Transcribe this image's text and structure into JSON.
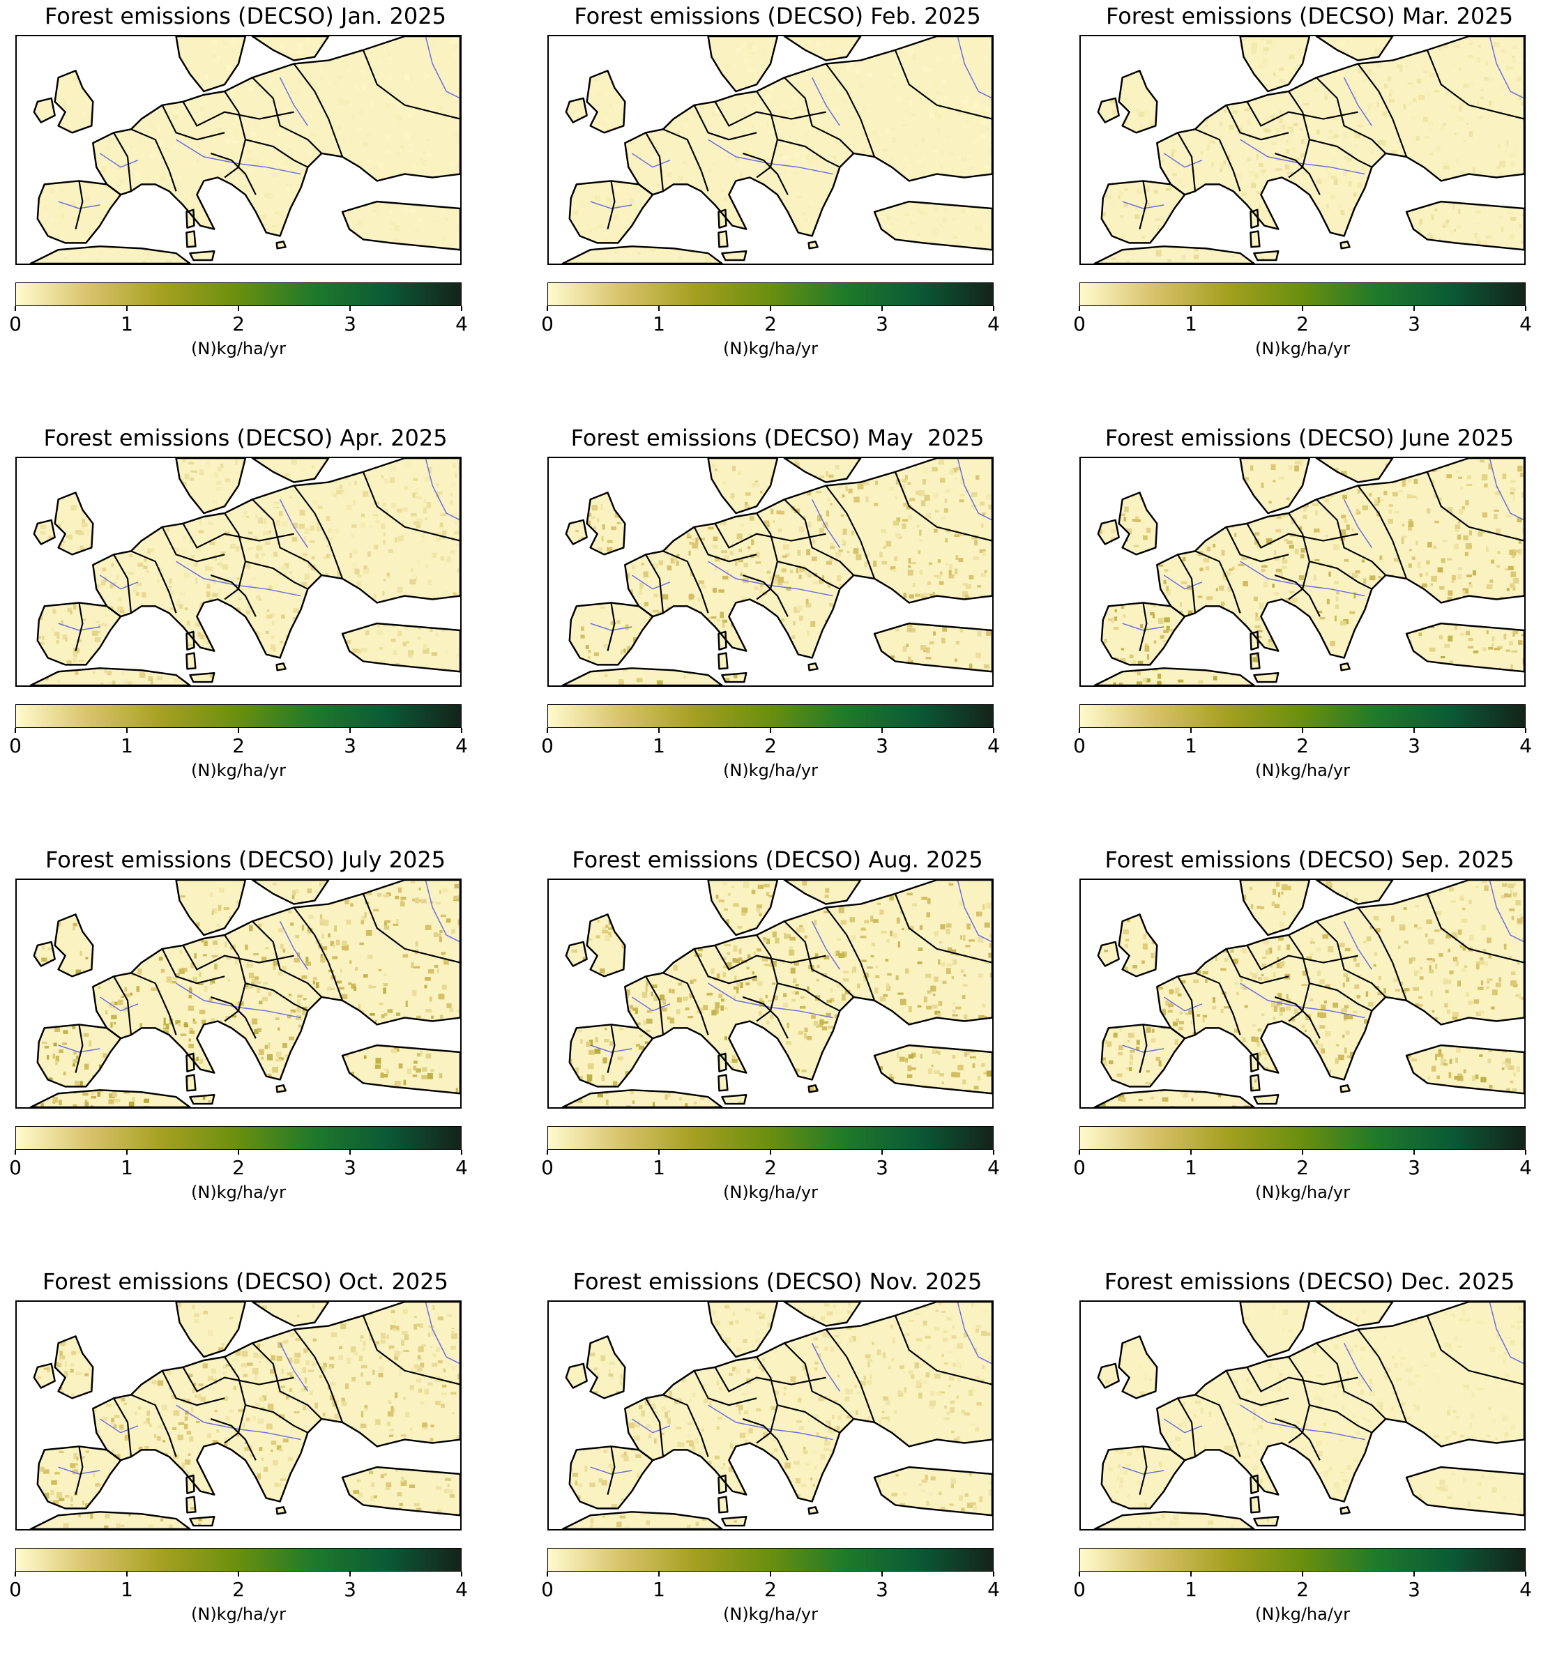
{
  "colorbar": {
    "ticks": [
      "0",
      "1",
      "2",
      "3",
      "4"
    ],
    "unit": "(N)kg/ha/yr",
    "range": [
      0,
      4
    ],
    "colors": [
      "#fffacd",
      "#d7c26a",
      "#a39f1f",
      "#6a8f0f",
      "#1f7a2a",
      "#0b5a36",
      "#14231a"
    ]
  },
  "panels": [
    {
      "title": "Forest emissions (DECSO) Jan. 2025",
      "level": 0.15
    },
    {
      "title": "Forest emissions (DECSO) Feb. 2025",
      "level": 0.15
    },
    {
      "title": "Forest emissions (DECSO) Mar. 2025",
      "level": 0.3
    },
    {
      "title": "Forest emissions (DECSO) Apr. 2025",
      "level": 0.45
    },
    {
      "title": "Forest emissions (DECSO) May  2025",
      "level": 0.75
    },
    {
      "title": "Forest emissions (DECSO) June 2025",
      "level": 0.9
    },
    {
      "title": "Forest emissions (DECSO) July 2025",
      "level": 1.0
    },
    {
      "title": "Forest emissions (DECSO) Aug. 2025",
      "level": 0.95
    },
    {
      "title": "Forest emissions (DECSO) Sep. 2025",
      "level": 0.85
    },
    {
      "title": "Forest emissions (DECSO) Oct. 2025",
      "level": 0.7
    },
    {
      "title": "Forest emissions (DECSO) Nov. 2025",
      "level": 0.5
    },
    {
      "title": "Forest emissions (DECSO) Dec. 2025",
      "level": 0.25
    }
  ]
}
